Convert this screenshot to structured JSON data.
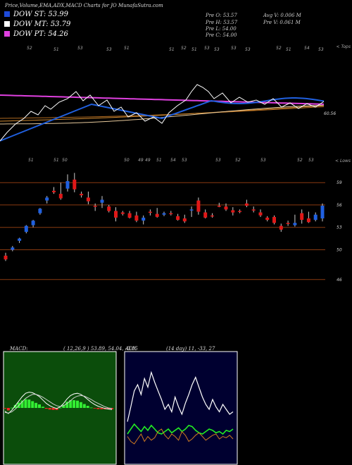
{
  "header": {
    "title": "Price,Volume,EMA,ADX,MACD Charts for JO MunafaSutra.com"
  },
  "legend": [
    {
      "label": "DOW ST: 53.99",
      "color": "#1e4ad8"
    },
    {
      "label": "DOW MT: 53.79",
      "color": "#ffffff"
    },
    {
      "label": "DOW PT: 54.26",
      "color": "#e040e0"
    }
  ],
  "stats": {
    "prev_open": "Pre  O: 53.57",
    "prev_high": "Pre  H: 53.57",
    "prev_low": "Pre  L: 54.00",
    "prev_close": "Pre  C: 54.00",
    "avg_volume": "Avg  V: 0.006  M",
    "prev_volume": "Pre  V: 0.061 M"
  },
  "labels": {
    "top_corner": "< Tops",
    "lower_corner": "< Lows",
    "ema_value": "60.56"
  },
  "ema_top_labels": [
    "52",
    "51",
    "53",
    "53",
    "51",
    "51",
    "52",
    "51",
    "53",
    "53",
    "53",
    "53",
    "52",
    "51",
    "54",
    "53"
  ],
  "mid_labels": [
    "51",
    "51",
    "50",
    "50",
    "49",
    "49",
    "51",
    "54",
    "53",
    "53",
    "52",
    "53",
    "52",
    "53"
  ],
  "price_ticks": [
    "59",
    "56",
    "53",
    "50",
    "46"
  ],
  "colors": {
    "up": "#2060e0",
    "down": "#e01818",
    "level": "#8a3a10",
    "macd_bg": "#0b4d0b",
    "adx_bg": "#000030"
  },
  "chart_data": [
    {
      "type": "candlestick",
      "title": "Price",
      "y_axis_ticks": [
        59,
        56,
        53,
        50,
        46
      ],
      "horizontal_levels": [
        59,
        56,
        53,
        50,
        46
      ],
      "candles": [
        {
          "o": 49.2,
          "h": 49.6,
          "l": 48.5,
          "c": 48.7
        },
        {
          "o": 50.0,
          "h": 50.5,
          "l": 49.8,
          "c": 50.3
        },
        {
          "o": 51.2,
          "h": 51.6,
          "l": 50.9,
          "c": 51.5
        },
        {
          "o": 52.4,
          "h": 53.3,
          "l": 52.2,
          "c": 53.2
        },
        {
          "o": 53.3,
          "h": 54.0,
          "l": 53.0,
          "c": 53.9
        },
        {
          "o": 54.9,
          "h": 55.6,
          "l": 54.7,
          "c": 55.5
        },
        {
          "o": 56.6,
          "h": 57.2,
          "l": 56.2,
          "c": 57.0
        },
        {
          "o": 57.9,
          "h": 58.4,
          "l": 57.5,
          "c": 57.7
        },
        {
          "o": 57.5,
          "h": 59.0,
          "l": 56.7,
          "c": 56.9
        },
        {
          "o": 58.2,
          "h": 60.1,
          "l": 57.8,
          "c": 59.2
        },
        {
          "o": 59.4,
          "h": 60.3,
          "l": 57.7,
          "c": 58.1
        },
        {
          "o": 57.5,
          "h": 57.8,
          "l": 57.0,
          "c": 57.3
        },
        {
          "o": 57.0,
          "h": 57.8,
          "l": 56.1,
          "c": 56.5
        },
        {
          "o": 55.9,
          "h": 56.2,
          "l": 55.2,
          "c": 55.8
        },
        {
          "o": 56.3,
          "h": 57.2,
          "l": 55.6,
          "c": 56.7
        },
        {
          "o": 55.8,
          "h": 56.0,
          "l": 55.0,
          "c": 55.2
        },
        {
          "o": 55.2,
          "h": 55.7,
          "l": 53.8,
          "c": 54.3
        },
        {
          "o": 55.0,
          "h": 55.2,
          "l": 54.6,
          "c": 54.8
        },
        {
          "o": 54.9,
          "h": 55.2,
          "l": 54.2,
          "c": 54.3
        },
        {
          "o": 54.6,
          "h": 55.1,
          "l": 53.7,
          "c": 53.9
        },
        {
          "o": 53.9,
          "h": 54.6,
          "l": 53.4,
          "c": 54.3
        },
        {
          "o": 55.1,
          "h": 55.4,
          "l": 54.6,
          "c": 55.0
        },
        {
          "o": 54.8,
          "h": 55.6,
          "l": 54.3,
          "c": 54.4
        },
        {
          "o": 54.7,
          "h": 55.1,
          "l": 54.5,
          "c": 54.9
        },
        {
          "o": 54.9,
          "h": 55.2,
          "l": 54.6,
          "c": 54.8
        },
        {
          "o": 54.5,
          "h": 54.8,
          "l": 53.9,
          "c": 54.0
        },
        {
          "o": 54.2,
          "h": 54.7,
          "l": 53.6,
          "c": 53.8
        },
        {
          "o": 55.3,
          "h": 55.8,
          "l": 54.4,
          "c": 55.4
        },
        {
          "o": 56.6,
          "h": 57.0,
          "l": 54.7,
          "c": 55.1
        },
        {
          "o": 55.0,
          "h": 55.4,
          "l": 54.2,
          "c": 54.3
        },
        {
          "o": 54.6,
          "h": 54.9,
          "l": 54.3,
          "c": 54.5
        },
        {
          "o": 55.9,
          "h": 56.3,
          "l": 55.7,
          "c": 55.8
        },
        {
          "o": 55.8,
          "h": 56.2,
          "l": 55.2,
          "c": 55.4
        },
        {
          "o": 55.3,
          "h": 55.7,
          "l": 54.6,
          "c": 55.0
        },
        {
          "o": 55.2,
          "h": 55.4,
          "l": 54.9,
          "c": 55.1
        },
        {
          "o": 56.2,
          "h": 56.7,
          "l": 55.7,
          "c": 55.9
        },
        {
          "o": 55.4,
          "h": 55.8,
          "l": 55.0,
          "c": 55.3
        },
        {
          "o": 55.0,
          "h": 55.4,
          "l": 54.4,
          "c": 54.6
        },
        {
          "o": 54.3,
          "h": 54.5,
          "l": 53.8,
          "c": 54.0
        },
        {
          "o": 54.4,
          "h": 54.6,
          "l": 53.4,
          "c": 53.6
        },
        {
          "o": 53.2,
          "h": 53.5,
          "l": 52.4,
          "c": 52.7
        },
        {
          "o": 53.6,
          "h": 53.9,
          "l": 53.2,
          "c": 53.5
        },
        {
          "o": 53.3,
          "h": 54.7,
          "l": 53.1,
          "c": 53.6
        },
        {
          "o": 54.9,
          "h": 55.4,
          "l": 53.5,
          "c": 54.0
        },
        {
          "o": 54.2,
          "h": 55.1,
          "l": 53.6,
          "c": 53.7
        },
        {
          "o": 54.0,
          "h": 55.0,
          "l": 53.8,
          "c": 54.7
        },
        {
          "o": 54.2,
          "h": 56.2,
          "l": 53.8,
          "c": 55.9
        }
      ]
    },
    {
      "type": "line",
      "title": "MACD",
      "params_label": "MACD:",
      "values_label": "( 12,26,9 ) 53.89, 54.04, -0.15",
      "series": [
        {
          "name": "MACD",
          "values": [
            -0.3,
            -0.5,
            -0.2,
            0.2,
            0.6,
            1.0,
            1.3,
            1.4,
            1.35,
            1.2,
            1.0,
            0.7,
            0.4,
            0.2,
            0.05,
            -0.05,
            0.1,
            0.4,
            0.8,
            1.1,
            1.25,
            1.3,
            1.2,
            1.0,
            0.75,
            0.5,
            0.3,
            0.15,
            0.05,
            -0.05,
            -0.1,
            -0.15
          ]
        },
        {
          "name": "Signal",
          "values": [
            -0.4,
            -0.45,
            -0.35,
            -0.1,
            0.2,
            0.55,
            0.85,
            1.05,
            1.2,
            1.2,
            1.1,
            0.95,
            0.75,
            0.55,
            0.35,
            0.2,
            0.12,
            0.2,
            0.4,
            0.65,
            0.9,
            1.05,
            1.1,
            1.05,
            0.9,
            0.75,
            0.55,
            0.4,
            0.25,
            0.1,
            0.0,
            -0.05
          ]
        }
      ]
    },
    {
      "type": "line",
      "title": "ADX",
      "params_label": "ADX",
      "values_label": "(14 day) 11, -33, 27",
      "series": [
        {
          "name": "ADX",
          "values": [
            30,
            42,
            55,
            60,
            52,
            65,
            58,
            70,
            62,
            55,
            48,
            40,
            44,
            38,
            50,
            42,
            36,
            45,
            52,
            60,
            66,
            58,
            50,
            44,
            40,
            48,
            42,
            38,
            44,
            40,
            36,
            38
          ]
        },
        {
          "name": "+DI",
          "values": [
            20,
            24,
            28,
            25,
            22,
            26,
            23,
            27,
            24,
            21,
            20,
            22,
            24,
            21,
            23,
            25,
            22,
            24,
            27,
            26,
            23,
            21,
            20,
            22,
            24,
            23,
            21,
            22,
            20,
            23,
            22,
            24
          ]
        },
        {
          "name": "-DI",
          "values": [
            18,
            14,
            12,
            16,
            20,
            14,
            18,
            15,
            17,
            22,
            24,
            19,
            16,
            20,
            18,
            15,
            22,
            19,
            14,
            16,
            19,
            21,
            18,
            15,
            17,
            19,
            20,
            16,
            18,
            17,
            19,
            16
          ]
        }
      ]
    }
  ]
}
